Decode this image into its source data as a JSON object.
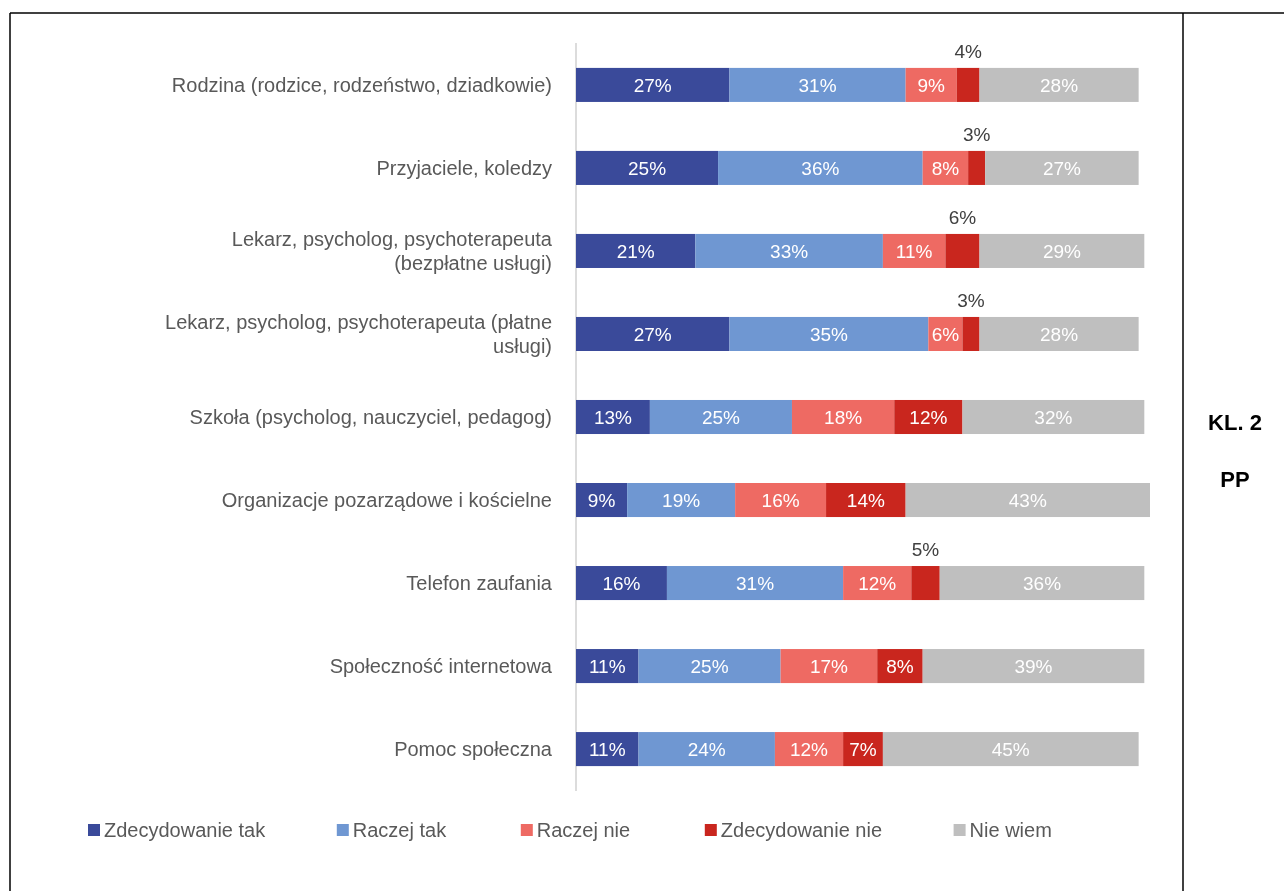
{
  "chart_data": {
    "type": "bar",
    "orientation": "horizontal",
    "stacked": true,
    "legend": "bottom",
    "categories": [
      "Rodzina (rodzice, rodzeństwo, dziadkowie)",
      "Przyjaciele, koledzy",
      "Lekarz, psycholog, psychoterapeuta (bezpłatne usługi)",
      "Lekarz, psycholog, psychoterapeuta (płatne usługi)",
      "Szkoła (psycholog, nauczyciel, pedagog)",
      "Organizacje pozarządowe i kościelne",
      "Telefon zaufania",
      "Społeczność internetowa",
      "Pomoc społeczna"
    ],
    "series": [
      {
        "name": "Zdecydowanie tak",
        "color": "#3a4a9a",
        "values": [
          27,
          25,
          21,
          27,
          13,
          9,
          16,
          11,
          11
        ],
        "value_labels": [
          "27%",
          "25%",
          "21%",
          "27%",
          "13%",
          "9%",
          "16%",
          "11%",
          "11%"
        ]
      },
      {
        "name": "Raczej tak",
        "color": "#6f97d2",
        "values": [
          31,
          36,
          33,
          35,
          25,
          19,
          31,
          25,
          24
        ],
        "value_labels": [
          "31%",
          "36%",
          "33%",
          "35%",
          "25%",
          "19%",
          "31%",
          "25%",
          "24%"
        ]
      },
      {
        "name": "Raczej nie",
        "color": "#ee6a63",
        "values": [
          9,
          8,
          11,
          6,
          18,
          16,
          12,
          17,
          12
        ],
        "value_labels": [
          "9%",
          "8%",
          "11%",
          "6%",
          "18%",
          "16%",
          "12%",
          "17%",
          "12%"
        ]
      },
      {
        "name": "Zdecydowanie nie",
        "color": "#c9261e",
        "values": [
          4,
          3,
          6,
          3,
          12,
          14,
          5,
          8,
          7
        ],
        "value_labels": [
          "4%",
          "3%",
          "6%",
          "3%",
          "12%",
          "14%",
          "5%",
          "8%",
          "7%"
        ]
      },
      {
        "name": "Nie wiem",
        "color": "#bfbfbf",
        "values": [
          28,
          27,
          29,
          28,
          32,
          43,
          36,
          39,
          45
        ],
        "value_labels": [
          "28%",
          "27%",
          "29%",
          "28%",
          "32%",
          "43%",
          "36%",
          "39%",
          "45%"
        ]
      }
    ],
    "annotations": [
      "KL. 2",
      "PP"
    ]
  }
}
